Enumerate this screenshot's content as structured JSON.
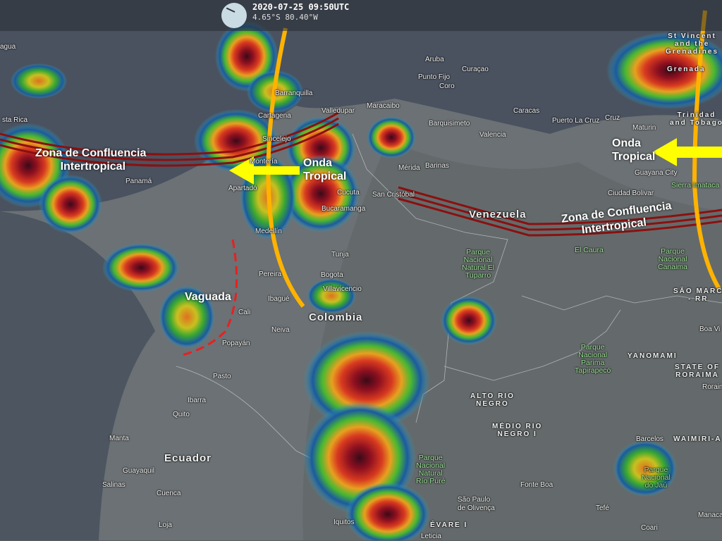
{
  "header": {
    "timestamp": "2020-07-25 09:50UTC",
    "coordinates": "4.65°S 80.40°W",
    "clock_icon": "clock-icon"
  },
  "colors": {
    "itcz": "#8b1010",
    "tropical_wave_arrow": "#ffff00",
    "tropical_wave_axis": "#ffb300",
    "trough": "#e82020"
  },
  "annotations": {
    "itcz_left": "Zona de Confluencia\n        Intertropical",
    "wave_left": "Onda\nTropical",
    "trough": "Vaguada",
    "wave_right": "Onda\nTropical",
    "itcz_right": "Zona de Confluencia\n      Intertropical"
  },
  "countries": [
    "Colombia",
    "Ecuador",
    "Venezuela"
  ],
  "regions": [
    "YANOMAMI",
    "STATE OF\nRORAIMA",
    "ALTO RIO\nNEGRO",
    "MÉDIO RIO\nNEGRO I",
    "ÉVARE I",
    "WAIMIRI-A",
    "SÃO MARC\n- RR",
    "St Vincent\nand the\nGrenadines",
    "Grenada",
    "Trinidad\nand Tobago"
  ],
  "parks": [
    "Parque\nNacional\nNatural El\nTuparro",
    "Parque\nNacional\nCanaima",
    "Parque\nNacional\nParima\nTapirapecó",
    "Parque\nNacional\nNatural\nRío Puré",
    "Parque\nNacional\ndo Jaú",
    "Sierra Imataca",
    "El Caura"
  ],
  "places": [
    "agua",
    "sta Rica",
    "Aruba",
    "Curaçao",
    "Punto Fijo",
    "Coro",
    "Barranquilla",
    "Maracaibo",
    "Barquisimeto",
    "Caracas",
    "Puerto La Cruz",
    "Cartagena",
    "Valledupar",
    "Valencia",
    "Sincelejo",
    "Montería",
    "Mérida",
    "Barinas",
    "Cucuta",
    "San Cristóbal",
    "Bucaramanga",
    "Apartadó",
    "Panamá",
    "Medellín",
    "Tunja",
    "Bogota",
    "Pereira",
    "Villavicencio",
    "Ibagué",
    "Cali",
    "Neiva",
    "Popayán",
    "Pasto",
    "Ibarra",
    "Quito",
    "Manta",
    "Guayaquil",
    "Salinas",
    "Cuenca",
    "Loja",
    "Iquitos",
    "Maturin",
    "Guayana City",
    "Ciudad Bolivar",
    "Tefé",
    "Fonte Boa",
    "Barcelos",
    "Coari",
    "Leticia",
    "São Paulo\nde Olivença",
    "Boa Vi",
    "Manaca",
    "Cruz",
    "Roraim"
  ]
}
